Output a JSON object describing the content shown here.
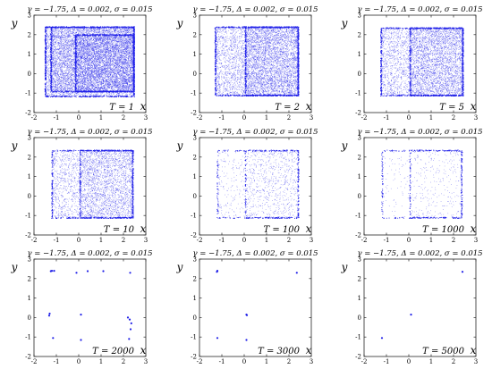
{
  "figure": {
    "dot_color": "#1f1fe8",
    "frame_color": "#262626"
  },
  "chart_data": [
    {
      "type": "scatter",
      "title": "γ = −1.75, Δ = 0.002, σ = 0.015",
      "xlabel": "x",
      "ylabel": "y",
      "xlim": [
        -2,
        3
      ],
      "ylim": [
        -2,
        3
      ],
      "xticks": [
        "-2",
        "-1",
        "0",
        "1",
        "2",
        "3"
      ],
      "yticks": [
        "-2",
        "-1",
        "0",
        "1",
        "2",
        "3"
      ],
      "grid": false,
      "annotation": "T = 1",
      "T": 1,
      "rectangles": [
        [
          -1.5,
          -1.15,
          2.45,
          2.4
        ],
        [
          -1.25,
          -0.9,
          2.45,
          2.4
        ],
        [
          -0.15,
          -0.9,
          2.45,
          2.0
        ]
      ],
      "density": 1.0,
      "points": []
    },
    {
      "type": "scatter",
      "title": "γ = −1.75, Δ = 0.002, σ = 0.015",
      "xlabel": "x",
      "ylabel": "y",
      "xlim": [
        -2,
        3
      ],
      "ylim": [
        -2,
        3
      ],
      "xticks": [
        "-2",
        "-1",
        "0",
        "1",
        "2",
        "3"
      ],
      "yticks": [
        "-2",
        "-1",
        "0",
        "1",
        "2",
        "3"
      ],
      "grid": false,
      "annotation": "T = 2",
      "T": 2,
      "rectangles": [
        [
          -1.3,
          -1.1,
          2.4,
          2.4
        ],
        [
          0.05,
          -1.1,
          2.4,
          2.4
        ]
      ],
      "density": 0.85,
      "points": []
    },
    {
      "type": "scatter",
      "title": "γ = −1.75, Δ = 0.002, σ = 0.015",
      "xlabel": "x",
      "ylabel": "y",
      "xlim": [
        -2,
        3
      ],
      "ylim": [
        -2,
        3
      ],
      "xticks": [
        "-2",
        "-1",
        "0",
        "1",
        "2",
        "3"
      ],
      "yticks": [
        "-2",
        "-1",
        "0",
        "1",
        "2",
        "3"
      ],
      "grid": false,
      "annotation": "T = 5",
      "T": 5,
      "rectangles": [
        [
          -1.25,
          -1.1,
          2.4,
          2.35
        ],
        [
          0.05,
          -1.1,
          2.4,
          2.35
        ]
      ],
      "density": 0.7,
      "points": []
    },
    {
      "type": "scatter",
      "title": "γ = −1.75, Δ = 0.002, σ = 0.015",
      "xlabel": "x",
      "ylabel": "y",
      "xlim": [
        -2,
        3
      ],
      "ylim": [
        -2,
        3
      ],
      "xticks": [
        "-2",
        "-1",
        "0",
        "1",
        "2",
        "3"
      ],
      "yticks": [
        "-2",
        "-1",
        "0",
        "1",
        "2",
        "3"
      ],
      "grid": false,
      "annotation": "T = 10",
      "T": 10,
      "rectangles": [
        [
          -1.2,
          -1.1,
          2.4,
          2.35
        ],
        [
          0.05,
          -1.1,
          2.4,
          2.35
        ]
      ],
      "density": 0.5,
      "points": []
    },
    {
      "type": "scatter",
      "title": "γ = −1.75, Δ = 0.002, σ = 0.015",
      "xlabel": "x",
      "ylabel": "y",
      "xlim": [
        -2,
        3
      ],
      "ylim": [
        -2,
        3
      ],
      "xticks": [
        "-2",
        "-1",
        "0",
        "1",
        "2",
        "3"
      ],
      "yticks": [
        "-2",
        "-1",
        "0",
        "1",
        "2",
        "3"
      ],
      "grid": false,
      "annotation": "T = 100",
      "T": 100,
      "rectangles": [
        [
          -1.2,
          -1.1,
          2.4,
          2.35
        ],
        [
          0.05,
          -1.1,
          2.4,
          2.35
        ]
      ],
      "density": 0.15,
      "points": []
    },
    {
      "type": "scatter",
      "title": "γ = −1.75, Δ = 0.002, σ = 0.015",
      "xlabel": "x",
      "ylabel": "y",
      "xlim": [
        -2,
        3
      ],
      "ylim": [
        -2,
        3
      ],
      "xticks": [
        "-2",
        "-1",
        "0",
        "1",
        "2",
        "3"
      ],
      "yticks": [
        "-2",
        "-1",
        "0",
        "1",
        "2",
        "3"
      ],
      "grid": false,
      "annotation": "T = 1000",
      "T": 1000,
      "rectangles": [
        [
          -1.2,
          -1.1,
          2.35,
          2.35
        ],
        [
          0.05,
          -1.1,
          2.35,
          2.35
        ]
      ],
      "density": 0.06,
      "points": []
    },
    {
      "type": "scatter",
      "title": "γ = −1.75, Δ = 0.002, σ = 0.015",
      "xlabel": "x",
      "ylabel": "y",
      "xlim": [
        -2,
        3
      ],
      "ylim": [
        -2,
        3
      ],
      "xticks": [
        "-2",
        "-1",
        "0",
        "1",
        "2",
        "3"
      ],
      "yticks": [
        "-2",
        "-1",
        "0",
        "1",
        "2",
        "3"
      ],
      "grid": false,
      "annotation": "T = 2000",
      "T": 2000,
      "rectangles": [],
      "density": 0,
      "points": [
        [
          -1.2,
          2.4
        ],
        [
          -1.1,
          2.4
        ],
        [
          -1.25,
          2.38
        ],
        [
          -0.1,
          2.3
        ],
        [
          0.4,
          2.38
        ],
        [
          1.1,
          2.38
        ],
        [
          2.3,
          2.3
        ],
        [
          -1.3,
          0.2
        ],
        [
          -1.32,
          0.1
        ],
        [
          0.1,
          0.15
        ],
        [
          2.2,
          0.0
        ],
        [
          2.28,
          -0.1
        ],
        [
          2.35,
          -0.3
        ],
        [
          2.32,
          -0.6
        ],
        [
          -1.15,
          -1.05
        ],
        [
          0.1,
          -1.15
        ],
        [
          2.25,
          -1.1
        ]
      ]
    },
    {
      "type": "scatter",
      "title": "γ = −1.75, Δ = 0.002, σ = 0.015",
      "xlabel": "x",
      "ylabel": "y",
      "xlim": [
        -2,
        3
      ],
      "ylim": [
        -2,
        3
      ],
      "xticks": [
        "-2",
        "-1",
        "0",
        "1",
        "2",
        "3"
      ],
      "yticks": [
        "-2",
        "-1",
        "0",
        "1",
        "2",
        "3"
      ],
      "grid": false,
      "annotation": "T = 3000",
      "T": 3000,
      "rectangles": [],
      "density": 0,
      "points": [
        [
          -1.2,
          2.4
        ],
        [
          -1.22,
          2.35
        ],
        [
          2.35,
          2.3
        ],
        [
          0.1,
          0.15
        ],
        [
          0.12,
          0.12
        ],
        [
          -1.2,
          -1.05
        ],
        [
          0.1,
          -1.15
        ]
      ]
    },
    {
      "type": "scatter",
      "title": "γ = −1.75, Δ = 0.002, σ = 0.015",
      "xlabel": "x",
      "ylabel": "y",
      "xlim": [
        -2,
        3
      ],
      "ylim": [
        -2,
        3
      ],
      "xticks": [
        "-2",
        "-1",
        "0",
        "1",
        "2",
        "3"
      ],
      "yticks": [
        "-2",
        "-1",
        "0",
        "1",
        "2",
        "3"
      ],
      "grid": false,
      "annotation": "T = 5000",
      "T": 5000,
      "rectangles": [],
      "density": 0,
      "points": [
        [
          2.4,
          2.35
        ],
        [
          0.1,
          0.15
        ],
        [
          -1.2,
          -1.05
        ]
      ]
    }
  ]
}
